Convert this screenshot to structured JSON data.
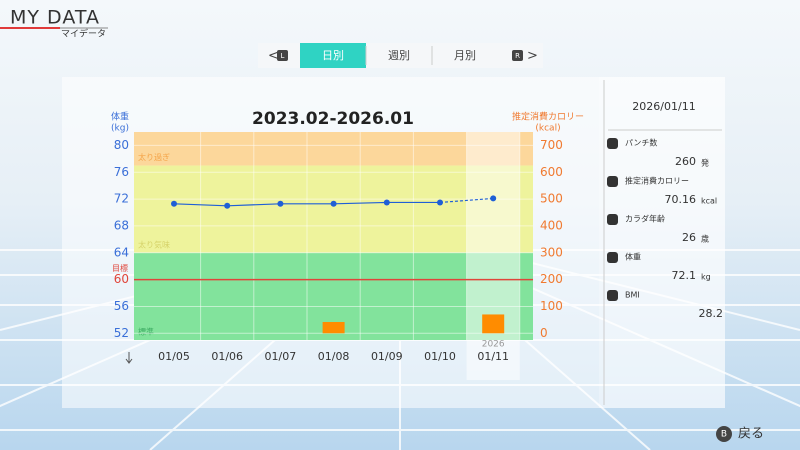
{
  "header": {
    "title": "MY DATA",
    "subtitle": "マイデータ"
  },
  "tabs": {
    "left_button": "L",
    "items": [
      "日別",
      "週別",
      "月別"
    ],
    "active": 0,
    "right_button": "R"
  },
  "chart_data": {
    "type": "line",
    "title": "2023.02-2026.01",
    "y_unit": "(kg)",
    "y2_unit": "(kcal)",
    "categories": [
      "01/05",
      "01/06",
      "01/07",
      "01/08",
      "01/09",
      "01/10",
      "01/11"
    ],
    "series": [
      {
        "name": "体重",
        "color": "#1f5fd6",
        "values": [
          71.3,
          71.0,
          71.3,
          71.3,
          71.5,
          71.5,
          72.1
        ],
        "dashed_from": "01/10"
      },
      {
        "name": "推定消費カロリー",
        "type": "bar",
        "axis": "y2",
        "color": "#ff8c00",
        "values": [
          null,
          null,
          null,
          42,
          null,
          null,
          70.16
        ]
      }
    ],
    "ylim": [
      51,
      82
    ],
    "yticks": [
      52,
      56,
      60,
      64,
      68,
      72,
      76,
      80
    ],
    "y2lim": [
      -25,
      750
    ],
    "y2ticks": [
      0,
      100,
      200,
      300,
      400,
      500,
      600,
      700
    ],
    "zones": [
      {
        "label": "太り過ぎ",
        "from": 77,
        "to": 82,
        "color": "#fcd79b"
      },
      {
        "label": "太り気味",
        "from": 64,
        "to": 77,
        "color": "#eef39c"
      },
      {
        "label": "標準",
        "from": 51,
        "to": 64,
        "color": "#82e39c"
      }
    ],
    "target": {
      "label": "目標",
      "value": 60,
      "color": "#e0453a"
    },
    "highlight": "01/11",
    "annotations": [
      {
        "text": "2026",
        "x": "01/11"
      }
    ],
    "grid": true
  },
  "side": {
    "date": "2026/01/11",
    "stats": [
      {
        "label": "パンチ数",
        "value": 260,
        "unit": "発"
      },
      {
        "label": "推定消費カロリー",
        "value": 70.16,
        "unit": "kcal"
      },
      {
        "label": "カラダ年齢",
        "value": 26,
        "unit": "歳"
      },
      {
        "label": "体重",
        "value": 72.1,
        "unit": "kg"
      },
      {
        "label": "BMI",
        "value": 28.2,
        "unit": null
      }
    ]
  },
  "footer": {
    "button": "B",
    "label": "戻る"
  }
}
